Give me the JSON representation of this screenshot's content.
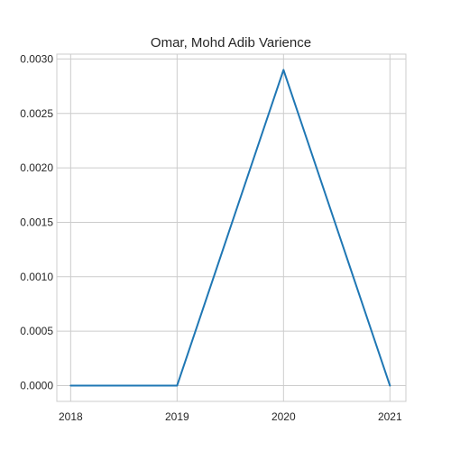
{
  "chart_data": {
    "type": "line",
    "title": "Omar, Mohd Adib Varience",
    "xlabel": "",
    "ylabel": "",
    "x": [
      "2018",
      "2019",
      "2020",
      "2021"
    ],
    "series": [
      {
        "values": [
          0.0,
          0.0,
          0.0029,
          0.0
        ]
      }
    ],
    "xlim": [
      2017.87,
      2021.15
    ],
    "ylim": [
      -0.000145,
      0.003045
    ],
    "yticks": [
      "0.0000",
      "0.0005",
      "0.0010",
      "0.0015",
      "0.0020",
      "0.0025",
      "0.0030"
    ],
    "ytick_values": [
      0.0,
      0.0005,
      0.001,
      0.0015,
      0.002,
      0.0025,
      0.003
    ],
    "grid": true,
    "legend": "none",
    "colors": {
      "line": "#1f77b4",
      "grid": "#cccccc",
      "text": "#262626",
      "background": "#ffffff"
    }
  }
}
